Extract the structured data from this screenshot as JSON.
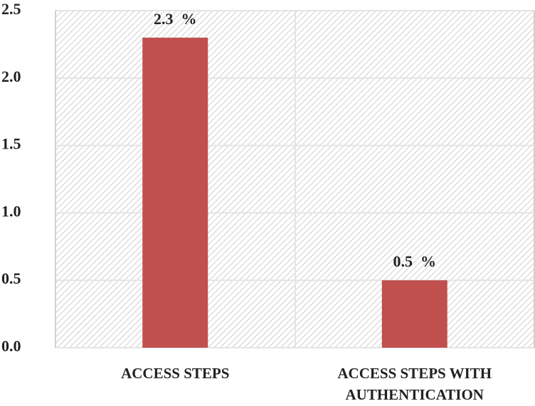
{
  "chart_data": {
    "type": "bar",
    "categories": [
      "ACCESS STEPS",
      "ACCESS STEPS WITH AUTHENTICATION"
    ],
    "values": [
      2.3,
      0.5
    ],
    "value_labels": [
      "2.3  %",
      "0.5  %"
    ],
    "color": "#c0504d",
    "ylim": [
      0,
      2.5
    ],
    "yticks": [
      {
        "value": 0,
        "label": "0.0"
      },
      0.5,
      {
        "value": 1,
        "label": "1.0"
      },
      1.5,
      {
        "value": 2,
        "label": "2.0"
      },
      2.5
    ],
    "grid": true
  }
}
